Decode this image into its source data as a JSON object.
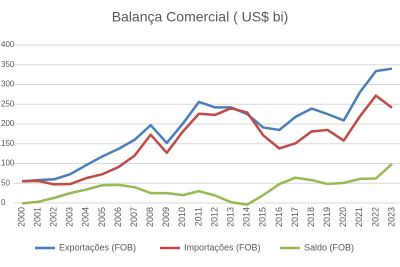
{
  "chart_data": {
    "type": "line",
    "title": "Balança Comercial ( US$ bi)",
    "categories": [
      "2000",
      "2001",
      "2002",
      "2003",
      "2004",
      "2005",
      "2006",
      "2007",
      "2008",
      "2009",
      "2010",
      "2011",
      "2012",
      "2013",
      "2014",
      "2015",
      "2016",
      "2017",
      "2018",
      "2019",
      "2020",
      "2021",
      "2022",
      "2023"
    ],
    "series": [
      {
        "name": "Exportações (FOB)",
        "color": "#4a7ebb",
        "values": [
          55,
          58,
          60,
          73,
          96,
          118,
          137,
          160,
          197,
          152,
          201,
          256,
          242,
          242,
          225,
          191,
          185,
          218,
          239,
          225,
          209,
          280,
          334,
          340
        ]
      },
      {
        "name": "Importações (FOB)",
        "color": "#be4b48",
        "values": [
          55,
          56,
          47,
          48,
          63,
          73,
          91,
          120,
          173,
          127,
          181,
          226,
          223,
          240,
          229,
          171,
          138,
          151,
          181,
          185,
          158,
          219,
          272,
          241
        ]
      },
      {
        "name": "Saldo (FOB)",
        "color": "#98b954",
        "values": [
          -1,
          3,
          13,
          25,
          34,
          45,
          46,
          40,
          25,
          25,
          20,
          30,
          19,
          2,
          -4,
          20,
          48,
          64,
          58,
          48,
          51,
          61,
          62,
          99
        ]
      }
    ],
    "ylim": [
      0,
      400
    ],
    "yticks": [
      0,
      50,
      100,
      150,
      200,
      250,
      300,
      350,
      400
    ],
    "grid": true,
    "legend": "bottom"
  }
}
